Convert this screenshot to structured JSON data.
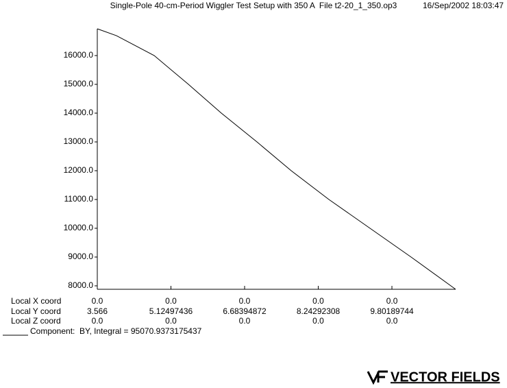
{
  "chart_data": {
    "type": "line",
    "title": "Single-Pole 40-cm-Period Wiggler Test Setup with 350 A  File t2-20_1_350.op3",
    "timestamp": "16/Sep/2002 18:03:47",
    "x": [
      3.566,
      3.972,
      4.77,
      5.495,
      6.191,
      6.945,
      7.67,
      8.468,
      9.338,
      10.208,
      11.15
    ],
    "series": [
      {
        "name": "Component:  BY, Integral = 95070.9373175437",
        "color": "#000000",
        "values": [
          16930,
          16690,
          16000,
          15000,
          14000,
          13000,
          12000,
          11000,
          10000,
          9000,
          7880
        ]
      }
    ],
    "xlim": [
      3.566,
      11.15
    ],
    "ylim": [
      7880,
      16930
    ],
    "xticks": [
      3.566,
      5.12497436,
      6.68394872,
      8.24292308,
      9.80189744
    ],
    "xtick_row_label": "Local Y coord",
    "extra_rows": [
      {
        "label": "Local X coord",
        "ticks": [
          "0.0",
          "0.0",
          "0.0",
          "0.0",
          "0.0"
        ]
      },
      {
        "label": "Local Z coord",
        "ticks": [
          "0.0",
          "0.0",
          "0.0",
          "0.0",
          "0.0"
        ]
      }
    ],
    "yticks": [
      {
        "value": 8000,
        "label": "8000.0"
      },
      {
        "value": 9000,
        "label": "9000.0"
      },
      {
        "value": 10000,
        "label": "10000.0"
      },
      {
        "value": 11000,
        "label": "11000.0"
      },
      {
        "value": 12000,
        "label": "12000.0"
      },
      {
        "value": 13000,
        "label": "13000.0"
      },
      {
        "value": 14000,
        "label": "14000.0"
      },
      {
        "value": 15000,
        "label": "15000.0"
      },
      {
        "value": 16000,
        "label": "16000.0"
      }
    ],
    "logo": "VECTOR FIELDS"
  }
}
